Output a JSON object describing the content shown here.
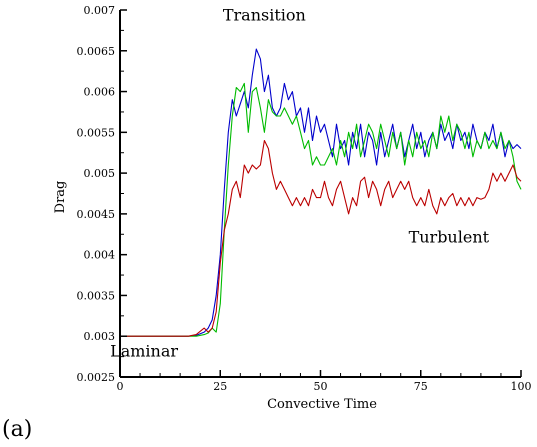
{
  "panel_label": "(a)",
  "chart_data": {
    "type": "line",
    "title": "",
    "xlabel": "Convective Time",
    "ylabel": "Drag",
    "xlim": [
      0,
      100
    ],
    "ylim": [
      0.0025,
      0.007
    ],
    "x_ticks": [
      0,
      25,
      50,
      75,
      100
    ],
    "x_tick_labels": [
      "0",
      "25",
      "50",
      "75",
      "100"
    ],
    "y_ticks": [
      0.0025,
      0.003,
      0.0035,
      0.004,
      0.0045,
      0.005,
      0.0055,
      0.006,
      0.0065,
      0.007
    ],
    "y_tick_labels": [
      "0.0025",
      "0.003",
      "0.0035",
      "0.004",
      "0.0045",
      "0.005",
      "0.0055",
      "0.006",
      "0.0065",
      "0.007"
    ],
    "grid": false,
    "legend": "none",
    "annotations": [
      {
        "text": "Transition",
        "x": 36,
        "y": 0.00687
      },
      {
        "text": "Turbulent",
        "x": 82,
        "y": 0.00415
      },
      {
        "text": "Laminar",
        "x": 6,
        "y": 0.00275
      }
    ],
    "series": [
      {
        "color": "#0000cc",
        "x": [
          0,
          17,
          19,
          21,
          22,
          23,
          24,
          25,
          26,
          27,
          28,
          29,
          30,
          31,
          32,
          33,
          34,
          35,
          36,
          37,
          38,
          39,
          40,
          41,
          42,
          43,
          44,
          45,
          46,
          47,
          48,
          49,
          50,
          51,
          52,
          53,
          54,
          55,
          56,
          57,
          58,
          59,
          60,
          61,
          62,
          63,
          64,
          65,
          66,
          67,
          68,
          69,
          70,
          71,
          72,
          73,
          74,
          75,
          76,
          77,
          78,
          79,
          80,
          81,
          82,
          83,
          84,
          85,
          86,
          87,
          88,
          89,
          90,
          91,
          92,
          93,
          94,
          95,
          96,
          97,
          98,
          99,
          100
        ],
        "y": [
          0.003,
          0.003,
          0.00301,
          0.00305,
          0.0031,
          0.0032,
          0.0035,
          0.004,
          0.0048,
          0.0055,
          0.0059,
          0.0057,
          0.00585,
          0.006,
          0.0058,
          0.0062,
          0.00652,
          0.0064,
          0.006,
          0.0062,
          0.0058,
          0.0057,
          0.0058,
          0.0061,
          0.0059,
          0.006,
          0.0057,
          0.0058,
          0.0055,
          0.0058,
          0.0054,
          0.0057,
          0.0055,
          0.0056,
          0.0054,
          0.0052,
          0.0056,
          0.0053,
          0.0054,
          0.0051,
          0.0055,
          0.0053,
          0.0056,
          0.0052,
          0.0055,
          0.0054,
          0.0051,
          0.0055,
          0.0052,
          0.0054,
          0.0056,
          0.0053,
          0.0055,
          0.0052,
          0.0054,
          0.0056,
          0.0053,
          0.0055,
          0.0052,
          0.0054,
          0.0055,
          0.0053,
          0.0056,
          0.0054,
          0.0055,
          0.0053,
          0.0056,
          0.0054,
          0.0055,
          0.0053,
          0.0056,
          0.0054,
          0.0053,
          0.0055,
          0.0054,
          0.0056,
          0.0053,
          0.0055,
          0.0052,
          0.0054,
          0.0053,
          0.00535,
          0.0053
        ]
      },
      {
        "color": "#00bb00",
        "x": [
          0,
          17,
          19,
          21,
          22,
          23,
          24,
          25,
          26,
          27,
          28,
          29,
          30,
          31,
          32,
          33,
          34,
          35,
          36,
          37,
          38,
          39,
          40,
          41,
          42,
          43,
          44,
          45,
          46,
          47,
          48,
          49,
          50,
          51,
          52,
          53,
          54,
          55,
          56,
          57,
          58,
          59,
          60,
          61,
          62,
          63,
          64,
          65,
          66,
          67,
          68,
          69,
          70,
          71,
          72,
          73,
          74,
          75,
          76,
          77,
          78,
          79,
          80,
          81,
          82,
          83,
          84,
          85,
          86,
          87,
          88,
          89,
          90,
          91,
          92,
          93,
          94,
          95,
          96,
          97,
          98,
          99,
          100
        ],
        "y": [
          0.003,
          0.003,
          0.003,
          0.00302,
          0.00304,
          0.0031,
          0.00305,
          0.0034,
          0.0043,
          0.0051,
          0.0057,
          0.00605,
          0.006,
          0.0061,
          0.0055,
          0.006,
          0.00605,
          0.0058,
          0.0055,
          0.0059,
          0.00575,
          0.0057,
          0.0057,
          0.0058,
          0.0057,
          0.0056,
          0.0057,
          0.0055,
          0.0053,
          0.0054,
          0.0051,
          0.0052,
          0.0051,
          0.0051,
          0.0052,
          0.0053,
          0.0051,
          0.0054,
          0.0052,
          0.0055,
          0.0053,
          0.0056,
          0.0052,
          0.0054,
          0.0056,
          0.0055,
          0.0053,
          0.0056,
          0.0054,
          0.0052,
          0.0055,
          0.0053,
          0.0055,
          0.0051,
          0.0054,
          0.0052,
          0.0055,
          0.0053,
          0.0054,
          0.0052,
          0.0055,
          0.0053,
          0.0057,
          0.0055,
          0.0057,
          0.0054,
          0.0056,
          0.0055,
          0.0053,
          0.0055,
          0.0052,
          0.0054,
          0.0053,
          0.0055,
          0.0053,
          0.0054,
          0.0053,
          0.0055,
          0.0053,
          0.0054,
          0.0052,
          0.0049,
          0.0048
        ]
      },
      {
        "color": "#bb0000",
        "x": [
          0,
          17,
          19,
          21,
          22,
          23,
          24,
          25,
          26,
          27,
          28,
          29,
          30,
          31,
          32,
          33,
          34,
          35,
          36,
          37,
          38,
          39,
          40,
          41,
          42,
          43,
          44,
          45,
          46,
          47,
          48,
          49,
          50,
          51,
          52,
          53,
          54,
          55,
          56,
          57,
          58,
          59,
          60,
          61,
          62,
          63,
          64,
          65,
          66,
          67,
          68,
          69,
          70,
          71,
          72,
          73,
          74,
          75,
          76,
          77,
          78,
          79,
          80,
          81,
          82,
          83,
          84,
          85,
          86,
          87,
          88,
          89,
          90,
          91,
          92,
          93,
          94,
          95,
          96,
          97,
          98,
          99,
          100
        ],
        "y": [
          0.003,
          0.003,
          0.00302,
          0.0031,
          0.00305,
          0.0031,
          0.0033,
          0.0039,
          0.0043,
          0.0045,
          0.0048,
          0.0049,
          0.0047,
          0.0051,
          0.005,
          0.0051,
          0.00505,
          0.0051,
          0.0054,
          0.0053,
          0.005,
          0.0048,
          0.0049,
          0.0048,
          0.0047,
          0.0046,
          0.0047,
          0.0046,
          0.0047,
          0.0046,
          0.0048,
          0.0047,
          0.0047,
          0.0049,
          0.0047,
          0.0046,
          0.0048,
          0.0049,
          0.0047,
          0.0045,
          0.0047,
          0.0046,
          0.0049,
          0.00495,
          0.0047,
          0.0049,
          0.0048,
          0.0046,
          0.0048,
          0.0049,
          0.0047,
          0.0048,
          0.0049,
          0.0048,
          0.0049,
          0.0047,
          0.0046,
          0.0047,
          0.0046,
          0.0048,
          0.0046,
          0.0045,
          0.0047,
          0.0046,
          0.0047,
          0.00475,
          0.0046,
          0.0047,
          0.0046,
          0.0047,
          0.0046,
          0.0047,
          0.00468,
          0.0047,
          0.0048,
          0.005,
          0.0049,
          0.005,
          0.0049,
          0.005,
          0.0051,
          0.00495,
          0.0049
        ]
      }
    ]
  }
}
